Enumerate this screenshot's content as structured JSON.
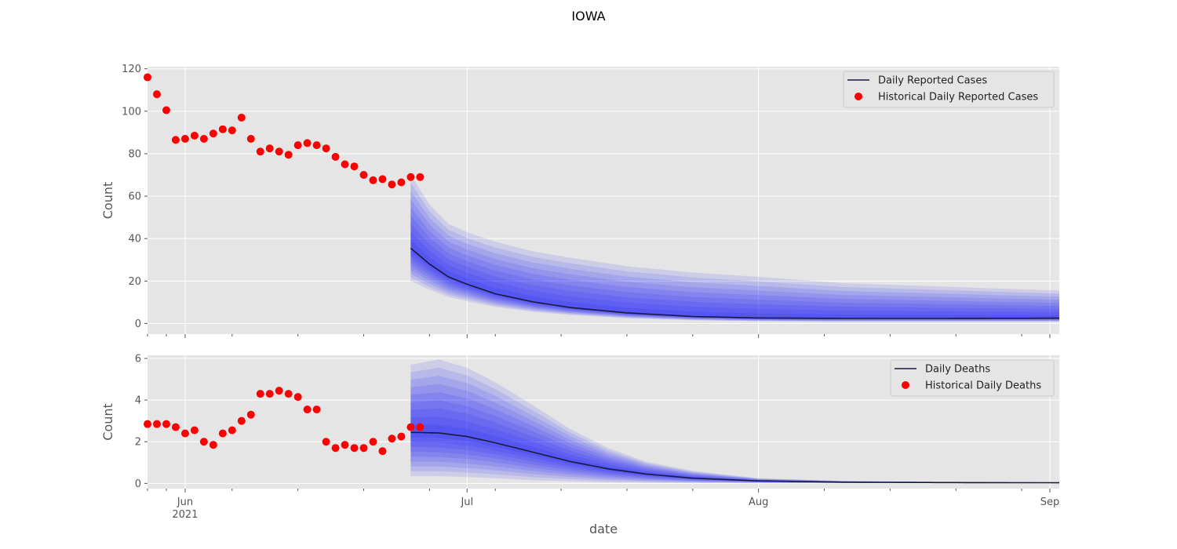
{
  "figure": {
    "title": "IOWA",
    "xlabel": "date"
  },
  "colors": {
    "panel_bg": "#e5e5e5",
    "grid": "#ffffff",
    "fan": "#0000ff",
    "median_line": "#1a1a40",
    "historical": "#ff0000",
    "tick_text": "#555555"
  },
  "x_axis": {
    "start": "2021-05-28",
    "end": "2021-09-02",
    "major_ticks": [
      {
        "date": "2021-06-01",
        "label": "Jun",
        "sublabel": "2021"
      },
      {
        "date": "2021-07-01",
        "label": "Jul",
        "sublabel": ""
      },
      {
        "date": "2021-08-01",
        "label": "Aug",
        "sublabel": ""
      },
      {
        "date": "2021-09-01",
        "label": "Sep",
        "sublabel": ""
      }
    ],
    "minor_ticks": [
      "2021-05-28",
      "2021-05-30",
      "2021-06-06",
      "2021-06-13",
      "2021-06-20",
      "2021-06-27",
      "2021-07-04",
      "2021-07-11",
      "2021-07-18",
      "2021-07-25",
      "2021-08-08",
      "2021-08-15",
      "2021-08-22",
      "2021-08-29"
    ]
  },
  "chart_data": [
    {
      "type": "line",
      "ylabel": "Count",
      "ylim": [
        -5,
        121
      ],
      "yticks": [
        0,
        20,
        40,
        60,
        80,
        100,
        120
      ],
      "grid": true,
      "legend_position": "top-right",
      "series": [
        {
          "name": "Daily Reported Cases",
          "kind": "forecast-median",
          "x": [
            "2021-06-25",
            "2021-06-27",
            "2021-06-29",
            "2021-07-01",
            "2021-07-04",
            "2021-07-08",
            "2021-07-12",
            "2021-07-18",
            "2021-07-25",
            "2021-08-01",
            "2021-08-10",
            "2021-08-20",
            "2021-09-02"
          ],
          "y": [
            35.5,
            28,
            22,
            18.5,
            14,
            10.2,
            7.5,
            5,
            3.3,
            2.6,
            2.4,
            2.4,
            2.5
          ],
          "interval_outer_low": [
            20,
            16,
            12.5,
            10.5,
            7.8,
            5.5,
            4,
            2.5,
            1.5,
            1,
            0.8,
            0.8,
            0.8
          ],
          "interval_outer_high": [
            70,
            56,
            47,
            43,
            38.5,
            34,
            31,
            27,
            24,
            22,
            19,
            17.5,
            15.5
          ]
        },
        {
          "name": "Historical Daily Reported Cases",
          "kind": "historical-points",
          "x": [
            "2021-05-28",
            "2021-05-29",
            "2021-05-30",
            "2021-05-31",
            "2021-06-01",
            "2021-06-02",
            "2021-06-03",
            "2021-06-04",
            "2021-06-05",
            "2021-06-06",
            "2021-06-07",
            "2021-06-08",
            "2021-06-09",
            "2021-06-10",
            "2021-06-11",
            "2021-06-12",
            "2021-06-13",
            "2021-06-14",
            "2021-06-15",
            "2021-06-16",
            "2021-06-17",
            "2021-06-18",
            "2021-06-19",
            "2021-06-20",
            "2021-06-21",
            "2021-06-22",
            "2021-06-23",
            "2021-06-24",
            "2021-06-25",
            "2021-06-26"
          ],
          "y": [
            116,
            108,
            100.5,
            86.5,
            87,
            88.5,
            87,
            89.5,
            91.5,
            91,
            97,
            87,
            81,
            82.5,
            81,
            79.5,
            84,
            85,
            84,
            82.5,
            78.5,
            75,
            74,
            70,
            67.5,
            68,
            65.5,
            66.5,
            69,
            69
          ]
        }
      ]
    },
    {
      "type": "line",
      "ylabel": "Count",
      "ylim": [
        -0.25,
        6.15
      ],
      "yticks": [
        0,
        2,
        4,
        6
      ],
      "grid": true,
      "legend_position": "top-right",
      "series": [
        {
          "name": "Daily Deaths",
          "kind": "forecast-median",
          "x": [
            "2021-06-25",
            "2021-06-28",
            "2021-07-01",
            "2021-07-04",
            "2021-07-08",
            "2021-07-12",
            "2021-07-16",
            "2021-07-20",
            "2021-07-25",
            "2021-08-01",
            "2021-08-10",
            "2021-08-20",
            "2021-09-02"
          ],
          "y": [
            2.45,
            2.42,
            2.25,
            1.95,
            1.5,
            1.05,
            0.7,
            0.45,
            0.25,
            0.12,
            0.06,
            0.04,
            0.03
          ],
          "interval_outer_low": [
            0.35,
            0.35,
            0.3,
            0.25,
            0.15,
            0.1,
            0.05,
            0.03,
            0.02,
            0.01,
            0.01,
            0.01,
            0.01
          ],
          "interval_outer_high": [
            5.7,
            5.95,
            5.55,
            4.85,
            3.75,
            2.6,
            1.7,
            1.05,
            0.6,
            0.25,
            0.12,
            0.08,
            0.06
          ]
        },
        {
          "name": "Historical Daily Deaths",
          "kind": "historical-points",
          "x": [
            "2021-05-28",
            "2021-05-29",
            "2021-05-30",
            "2021-05-31",
            "2021-06-01",
            "2021-06-02",
            "2021-06-03",
            "2021-06-04",
            "2021-06-05",
            "2021-06-06",
            "2021-06-07",
            "2021-06-08",
            "2021-06-09",
            "2021-06-10",
            "2021-06-11",
            "2021-06-12",
            "2021-06-13",
            "2021-06-14",
            "2021-06-15",
            "2021-06-16",
            "2021-06-17",
            "2021-06-18",
            "2021-06-19",
            "2021-06-20",
            "2021-06-21",
            "2021-06-22",
            "2021-06-23",
            "2021-06-24",
            "2021-06-25",
            "2021-06-26"
          ],
          "y": [
            2.85,
            2.85,
            2.85,
            2.7,
            2.4,
            2.55,
            2.0,
            1.85,
            2.4,
            2.55,
            3.0,
            3.3,
            4.3,
            4.3,
            4.45,
            4.3,
            4.15,
            3.55,
            3.55,
            2.0,
            1.7,
            1.85,
            1.7,
            1.7,
            2.0,
            1.55,
            2.15,
            2.25,
            2.7,
            2.7
          ]
        }
      ]
    }
  ]
}
